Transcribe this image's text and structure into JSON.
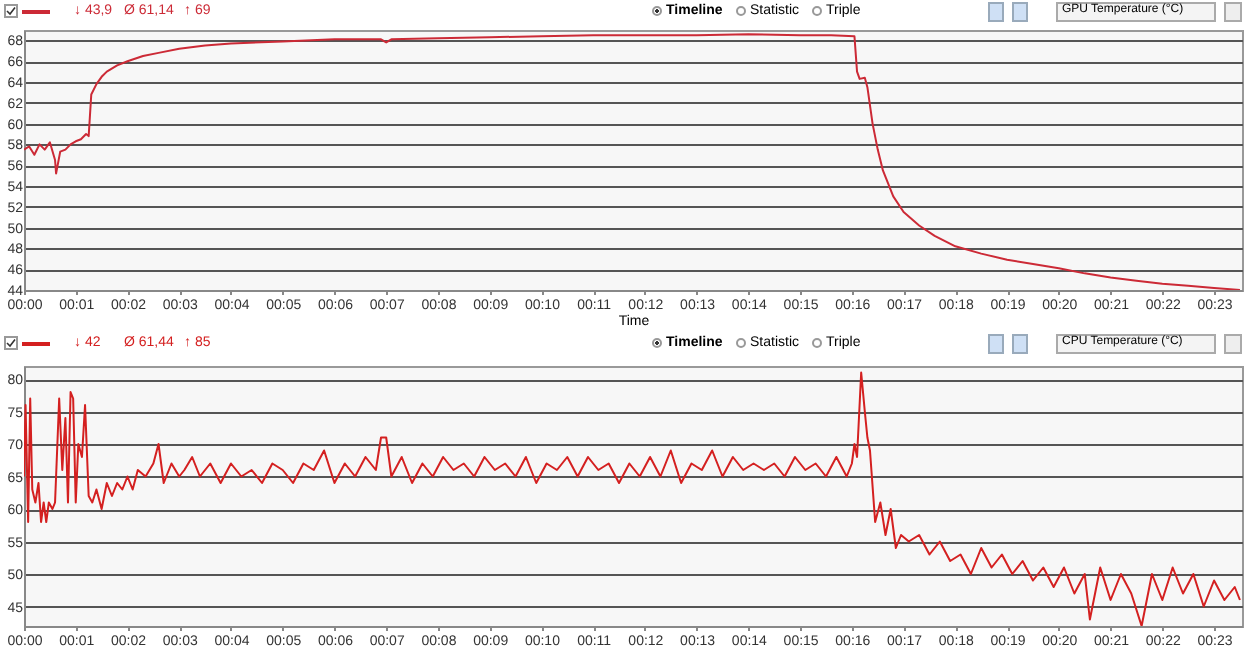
{
  "chart_data": [
    {
      "type": "line",
      "xlabel": "Time",
      "annotations": [
        "↓ 43,9",
        "Ø 61,14",
        "↑ 69",
        "Timeline",
        "Statistic",
        "Triple",
        "GPU Temperature (°C)"
      ],
      "x": [
        0,
        0.1,
        0.2,
        0.3,
        0.4,
        0.5,
        0.6,
        0.62,
        0.7,
        0.8,
        0.9,
        1.0,
        1.1,
        1.2,
        1.25,
        1.3,
        1.4,
        1.5,
        1.6,
        1.8,
        2.0,
        2.3,
        2.6,
        3.0,
        3.5,
        4,
        5,
        6,
        6.9,
        7.0,
        7.1,
        8,
        9,
        10,
        11,
        12,
        13,
        14,
        15,
        15.6,
        16.05,
        16.1,
        16.15,
        16.25,
        16.3,
        16.4,
        16.5,
        16.6,
        16.8,
        17,
        17.3,
        17.6,
        18,
        18.5,
        19,
        19.5,
        20,
        20.5,
        21,
        21.5,
        22,
        22.5,
        23,
        23.5
      ],
      "series": [
        {
          "color": "#cc2a36",
          "values": [
            57.5,
            57.8,
            57,
            58,
            57.5,
            58.2,
            56.5,
            55.2,
            57.3,
            57.5,
            58,
            58.3,
            58.5,
            59,
            58.8,
            62.8,
            63.8,
            64.5,
            65,
            65.6,
            66,
            66.5,
            66.8,
            67.2,
            67.5,
            67.7,
            67.9,
            68.1,
            68.1,
            67.8,
            68.1,
            68.2,
            68.3,
            68.4,
            68.5,
            68.5,
            68.5,
            68.6,
            68.5,
            68.5,
            68.4,
            65,
            64.3,
            64.4,
            63.5,
            60,
            57.5,
            55.5,
            53,
            51.5,
            50.2,
            49.2,
            48.2,
            47.5,
            46.9,
            46.5,
            46.1,
            45.6,
            45.2,
            44.9,
            44.6,
            44.4,
            44.2,
            44.0
          ]
        }
      ],
      "xlim": [
        0,
        23.54
      ],
      "ylim": [
        44,
        69
      ],
      "xticks": [
        {
          "value": 0,
          "label": "00:00"
        },
        {
          "value": 1,
          "label": "00:01"
        },
        {
          "value": 2,
          "label": "00:02"
        },
        {
          "value": 3,
          "label": "00:03"
        },
        {
          "value": 4,
          "label": "00:04"
        },
        {
          "value": 5,
          "label": "00:05"
        },
        {
          "value": 6,
          "label": "00:06"
        },
        {
          "value": 7,
          "label": "00:07"
        },
        {
          "value": 8,
          "label": "00:08"
        },
        {
          "value": 9,
          "label": "00:09"
        },
        {
          "value": 10,
          "label": "00:10"
        },
        {
          "value": 11,
          "label": "00:11"
        },
        {
          "value": 12,
          "label": "00:12"
        },
        {
          "value": 13,
          "label": "00:13"
        },
        {
          "value": 14,
          "label": "00:14"
        },
        {
          "value": 15,
          "label": "00:15"
        },
        {
          "value": 16,
          "label": "00:16"
        },
        {
          "value": 17,
          "label": "00:17"
        },
        {
          "value": 18,
          "label": "00:18"
        },
        {
          "value": 19,
          "label": "00:19"
        },
        {
          "value": 20,
          "label": "00:20"
        },
        {
          "value": 21,
          "label": "00:21"
        },
        {
          "value": 22,
          "label": "00:22"
        },
        {
          "value": 23,
          "label": "00:23"
        }
      ],
      "yticks": [
        44,
        46,
        48,
        50,
        52,
        54,
        56,
        58,
        60,
        62,
        64,
        66,
        68
      ],
      "grid": "y"
    },
    {
      "type": "line",
      "annotations": [
        "↓ 42",
        "Ø 61,44",
        "↑ 85",
        "Timeline",
        "Statistic",
        "Triple",
        "CPU Temperature (°C)"
      ],
      "x": [
        0,
        0.03,
        0.08,
        0.12,
        0.16,
        0.22,
        0.28,
        0.33,
        0.38,
        0.43,
        0.48,
        0.55,
        0.6,
        0.68,
        0.74,
        0.8,
        0.85,
        0.9,
        0.95,
        1.0,
        1.05,
        1.12,
        1.18,
        1.25,
        1.32,
        1.4,
        1.5,
        1.6,
        1.7,
        1.8,
        1.9,
        2.0,
        2.1,
        2.2,
        2.35,
        2.5,
        2.6,
        2.7,
        2.85,
        3.0,
        3.1,
        3.25,
        3.4,
        3.6,
        3.8,
        4.0,
        4.2,
        4.4,
        4.6,
        4.8,
        5.0,
        5.2,
        5.4,
        5.6,
        5.8,
        6.0,
        6.2,
        6.4,
        6.6,
        6.8,
        6.9,
        7.0,
        7.1,
        7.3,
        7.5,
        7.7,
        7.9,
        8.1,
        8.3,
        8.5,
        8.7,
        8.9,
        9.1,
        9.3,
        9.5,
        9.7,
        9.9,
        10.1,
        10.3,
        10.5,
        10.7,
        10.9,
        11.1,
        11.3,
        11.5,
        11.7,
        11.9,
        12.1,
        12.3,
        12.5,
        12.7,
        12.9,
        13.1,
        13.3,
        13.5,
        13.7,
        13.9,
        14.1,
        14.3,
        14.5,
        14.7,
        14.9,
        15.1,
        15.3,
        15.5,
        15.7,
        15.9,
        16.0,
        16.05,
        16.1,
        16.18,
        16.25,
        16.3,
        16.35,
        16.45,
        16.55,
        16.65,
        16.75,
        16.85,
        16.95,
        17.1,
        17.3,
        17.5,
        17.7,
        17.9,
        18.1,
        18.3,
        18.5,
        18.7,
        18.9,
        19.1,
        19.3,
        19.5,
        19.7,
        19.9,
        20.1,
        20.3,
        20.5,
        20.6,
        20.8,
        21.0,
        21.2,
        21.4,
        21.6,
        21.8,
        22.0,
        22.2,
        22.4,
        22.6,
        22.8,
        23.0,
        23.2,
        23.4,
        23.5
      ],
      "series": [
        {
          "color": "#d42020",
          "values": [
            65,
            76,
            58,
            77,
            63,
            61,
            64,
            58,
            61,
            58,
            61,
            60,
            61,
            77,
            66,
            74,
            61,
            78,
            77,
            61,
            70,
            68,
            76,
            62,
            61,
            63,
            60,
            64,
            62,
            64,
            63,
            65,
            63,
            66,
            65,
            67,
            70,
            64,
            67,
            65,
            66,
            68,
            65,
            67,
            64,
            67,
            65,
            66,
            64,
            67,
            66,
            64,
            67,
            66,
            69,
            64,
            67,
            65,
            68,
            66,
            71,
            71,
            65,
            68,
            64,
            67,
            65,
            68,
            66,
            67,
            65,
            68,
            66,
            67,
            65,
            68,
            64,
            67,
            66,
            68,
            65,
            68,
            66,
            67,
            64,
            67,
            65,
            68,
            65,
            69,
            64,
            67,
            66,
            69,
            65,
            68,
            66,
            67,
            66,
            67,
            65,
            68,
            66,
            67,
            65,
            68,
            65,
            67,
            70,
            68,
            81,
            75,
            71,
            69,
            58,
            61,
            56,
            60,
            54,
            56,
            55,
            56,
            53,
            55,
            52,
            53,
            50,
            54,
            51,
            53,
            50,
            52,
            49,
            51,
            48,
            51,
            47,
            50,
            43,
            51,
            46,
            50,
            47,
            42,
            50,
            46,
            51,
            47,
            50,
            45,
            49,
            46,
            48,
            46
          ]
        }
      ],
      "xlim": [
        0,
        23.54
      ],
      "ylim": [
        42,
        82
      ],
      "xticks": [
        {
          "value": 0,
          "label": "00:00"
        },
        {
          "value": 1,
          "label": "00:01"
        },
        {
          "value": 2,
          "label": "00:02"
        },
        {
          "value": 3,
          "label": "00:03"
        },
        {
          "value": 4,
          "label": "00:04"
        },
        {
          "value": 5,
          "label": "00:05"
        },
        {
          "value": 6,
          "label": "00:06"
        },
        {
          "value": 7,
          "label": "00:07"
        },
        {
          "value": 8,
          "label": "00:08"
        },
        {
          "value": 9,
          "label": "00:09"
        },
        {
          "value": 10,
          "label": "00:10"
        },
        {
          "value": 11,
          "label": "00:11"
        },
        {
          "value": 12,
          "label": "00:12"
        },
        {
          "value": 13,
          "label": "00:13"
        },
        {
          "value": 14,
          "label": "00:14"
        },
        {
          "value": 15,
          "label": "00:15"
        },
        {
          "value": 16,
          "label": "00:16"
        },
        {
          "value": 17,
          "label": "00:17"
        },
        {
          "value": 18,
          "label": "00:18"
        },
        {
          "value": 19,
          "label": "00:19"
        },
        {
          "value": 20,
          "label": "00:20"
        },
        {
          "value": 21,
          "label": "00:21"
        },
        {
          "value": 22,
          "label": "00:22"
        },
        {
          "value": 23,
          "label": "00:23"
        }
      ],
      "yticks": [
        45,
        50,
        55,
        60,
        65,
        70,
        75,
        80
      ],
      "grid": "y"
    }
  ]
}
